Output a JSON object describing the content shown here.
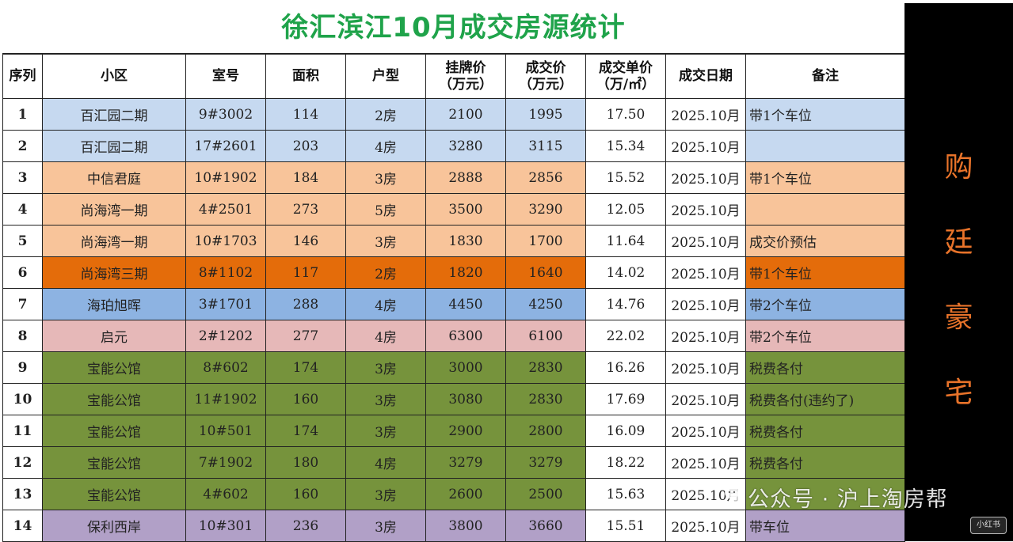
{
  "title": "徐汇滨江10月成交房源统计",
  "headers": {
    "index": "序列",
    "community": "小区",
    "room": "室号",
    "area": "面积",
    "layout": "户型",
    "list_price_1": "挂牌价",
    "list_price_2": "（万元）",
    "deal_price_1": "成交价",
    "deal_price_2": "（万元）",
    "unit_price_1": "成交单价",
    "unit_price_2": "（万/㎡）",
    "date": "成交日期",
    "note": "备注"
  },
  "rows": [
    {
      "idx": "1",
      "community": "百汇园二期",
      "room": "9#3002",
      "area": "114",
      "layout": "2房",
      "list": "2100",
      "deal": "1995",
      "unit": "17.50",
      "date": "2025.10月",
      "note": "带1个车位",
      "color": "#c6d9f0",
      "note_color": "#c6d9f0"
    },
    {
      "idx": "2",
      "community": "百汇园二期",
      "room": "17#2601",
      "area": "203",
      "layout": "4房",
      "list": "3280",
      "deal": "3115",
      "unit": "15.34",
      "date": "2025.10月",
      "note": "",
      "color": "#c6d9f0",
      "note_color": "#c6d9f0"
    },
    {
      "idx": "3",
      "community": "中信君庭",
      "room": "10#1902",
      "area": "184",
      "layout": "3房",
      "list": "2888",
      "deal": "2856",
      "unit": "15.52",
      "date": "2025.10月",
      "note": "带1个车位",
      "color": "#f8c49a",
      "note_color": "#f8c49a"
    },
    {
      "idx": "4",
      "community": "尚海湾一期",
      "room": "4#2501",
      "area": "273",
      "layout": "5房",
      "list": "3500",
      "deal": "3290",
      "unit": "12.05",
      "date": "2025.10月",
      "note": "",
      "color": "#f8c49a",
      "note_color": "#f8c49a"
    },
    {
      "idx": "5",
      "community": "尚海湾一期",
      "room": "10#1703",
      "area": "146",
      "layout": "3房",
      "list": "1830",
      "deal": "1700",
      "unit": "11.64",
      "date": "2025.10月",
      "note": "成交价预估",
      "color": "#f8c49a",
      "note_color": "#f8c49a"
    },
    {
      "idx": "6",
      "community": "尚海湾三期",
      "room": "8#1102",
      "area": "117",
      "layout": "2房",
      "list": "1820",
      "deal": "1640",
      "unit": "14.02",
      "date": "2025.10月",
      "note": "带1个车位",
      "color": "#e46c0a",
      "note_color": "#e46c0a"
    },
    {
      "idx": "7",
      "community": "海珀旭晖",
      "room": "3#1701",
      "area": "288",
      "layout": "4房",
      "list": "4450",
      "deal": "4250",
      "unit": "14.76",
      "date": "2025.10月",
      "note": "带2个车位",
      "color": "#8db3e2",
      "note_color": "#8db3e2"
    },
    {
      "idx": "8",
      "community": "启元",
      "room": "2#1202",
      "area": "277",
      "layout": "4房",
      "list": "6300",
      "deal": "6100",
      "unit": "22.02",
      "date": "2025.10月",
      "note": "带2个车位",
      "color": "#e6b8b8",
      "note_color": "#e6b8b8"
    },
    {
      "idx": "9",
      "community": "宝能公馆",
      "room": "8#602",
      "area": "174",
      "layout": "3房",
      "list": "3000",
      "deal": "2830",
      "unit": "16.26",
      "date": "2025.10月",
      "note": "税费各付",
      "color": "#76933c",
      "note_color": "#76933c"
    },
    {
      "idx": "10",
      "community": "宝能公馆",
      "room": "11#1902",
      "area": "160",
      "layout": "3房",
      "list": "3080",
      "deal": "2830",
      "unit": "17.69",
      "date": "2025.10月",
      "note": "税费各付(违约了)",
      "color": "#76933c",
      "note_color": "#76933c"
    },
    {
      "idx": "11",
      "community": "宝能公馆",
      "room": "10#501",
      "area": "174",
      "layout": "3房",
      "list": "2900",
      "deal": "2800",
      "unit": "16.09",
      "date": "2025.10月",
      "note": "税费各付",
      "color": "#76933c",
      "note_color": "#76933c"
    },
    {
      "idx": "12",
      "community": "宝能公馆",
      "room": "7#1902",
      "area": "180",
      "layout": "4房",
      "list": "3279",
      "deal": "3279",
      "unit": "18.22",
      "date": "2025.10月",
      "note": "税费各付",
      "color": "#76933c",
      "note_color": "#76933c"
    },
    {
      "idx": "13",
      "community": "宝能公馆",
      "room": "4#602",
      "area": "160",
      "layout": "3房",
      "list": "2600",
      "deal": "2500",
      "unit": "15.63",
      "date": "2025.10月",
      "note": "",
      "color": "#76933c",
      "note_color": "#76933c"
    },
    {
      "idx": "14",
      "community": "保利西岸",
      "room": "10#301",
      "area": "236",
      "layout": "3房",
      "list": "3800",
      "deal": "3660",
      "unit": "15.51",
      "date": "2025.10月",
      "note": "带车位",
      "color": "#b1a0c7",
      "note_color": "#b1a0c7"
    }
  ],
  "side_banner": [
    "购",
    "廷",
    "豪",
    "宅"
  ],
  "watermark": "公众号 · 沪上淘房帮",
  "corner_logo": "小红书",
  "colors": {
    "title": "#1fa34a",
    "side_text": "#e8732a",
    "side_bg": "#000000"
  }
}
